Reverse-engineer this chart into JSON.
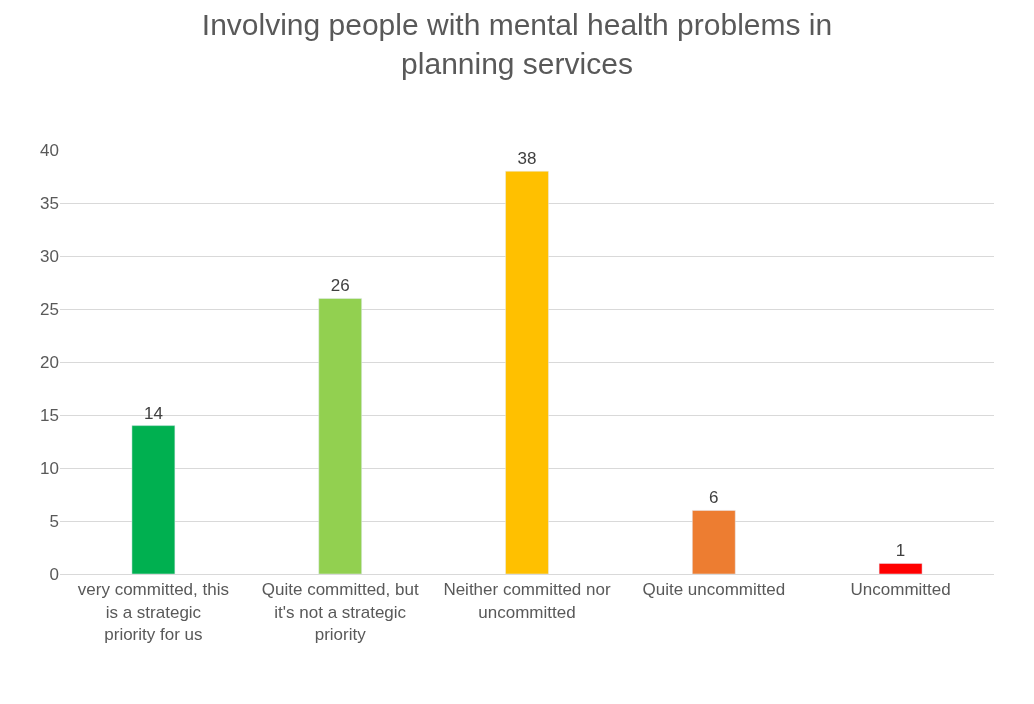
{
  "chart_data": {
    "type": "bar",
    "title": "Involving people with mental health problems in planning services",
    "categories": [
      "very committed, this is a strategic priority for us",
      "Quite committed, but it's not a strategic priority",
      "Neither committed nor uncommitted",
      "Quite uncommitted",
      "Uncommitted"
    ],
    "values": [
      14,
      26,
      38,
      6,
      1
    ],
    "colors": [
      "#00b050",
      "#92d050",
      "#ffc000",
      "#ed7d31",
      "#ff0000"
    ],
    "ylim": [
      0,
      40
    ],
    "yticks": [
      0,
      5,
      10,
      15,
      20,
      25,
      30,
      35,
      40
    ],
    "grid": "y",
    "data_labels": true
  }
}
